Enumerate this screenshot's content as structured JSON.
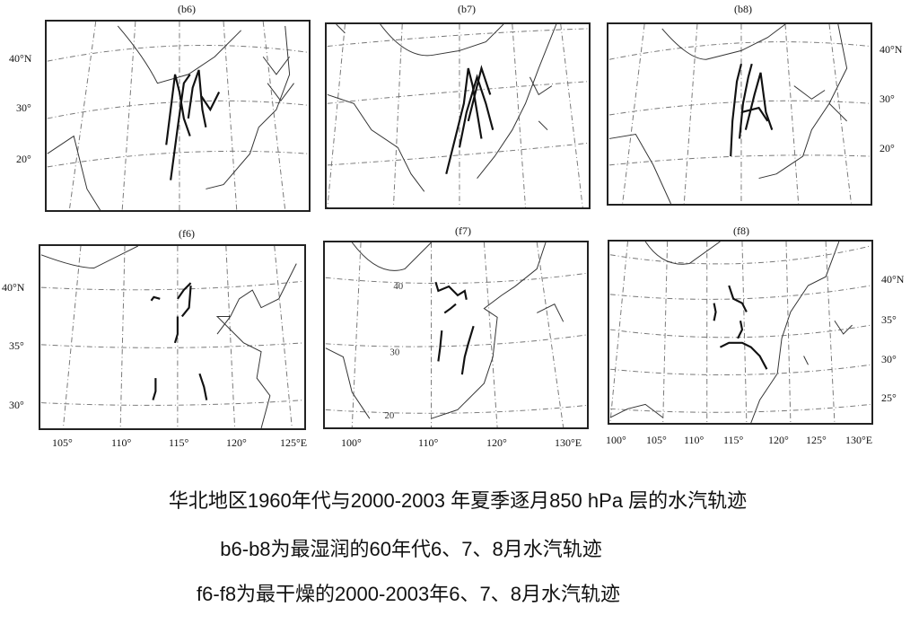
{
  "panels": {
    "b6": {
      "label": "(b6)",
      "lat_ticks": [
        "40°N",
        "30°",
        "20°"
      ]
    },
    "b7": {
      "label": "(b7)"
    },
    "b8": {
      "label": "(b8)",
      "lat_ticks": [
        "40°N",
        "30°",
        "20°"
      ]
    },
    "f6": {
      "label": "(f6)",
      "lat_ticks": [
        "40°N",
        "35°",
        "30°"
      ],
      "lon_ticks": [
        "105°",
        "110°",
        "115°",
        "120°",
        "125°E"
      ]
    },
    "f7": {
      "label": "(f7)",
      "inner_lat": [
        "40",
        "30",
        "20"
      ],
      "lon_ticks": [
        "100°",
        "110°",
        "120°",
        "130°E"
      ]
    },
    "f8": {
      "label": "(f8)",
      "lat_ticks": [
        "40°N",
        "35°",
        "30°",
        "25°"
      ],
      "lon_ticks": [
        "100°",
        "105°",
        "110°",
        "115°",
        "120°",
        "125°",
        "130°E"
      ]
    }
  },
  "caption": {
    "line1": "华北地区1960年代与2000-2003 年夏季逐月850 hPa 层的水汽轨迹",
    "line2": "b6-b8为最湿润的60年代6、7、8月水汽轨迹",
    "line3": "f6-f8为最干燥的2000-2003年6、7、8月水汽轨迹"
  }
}
